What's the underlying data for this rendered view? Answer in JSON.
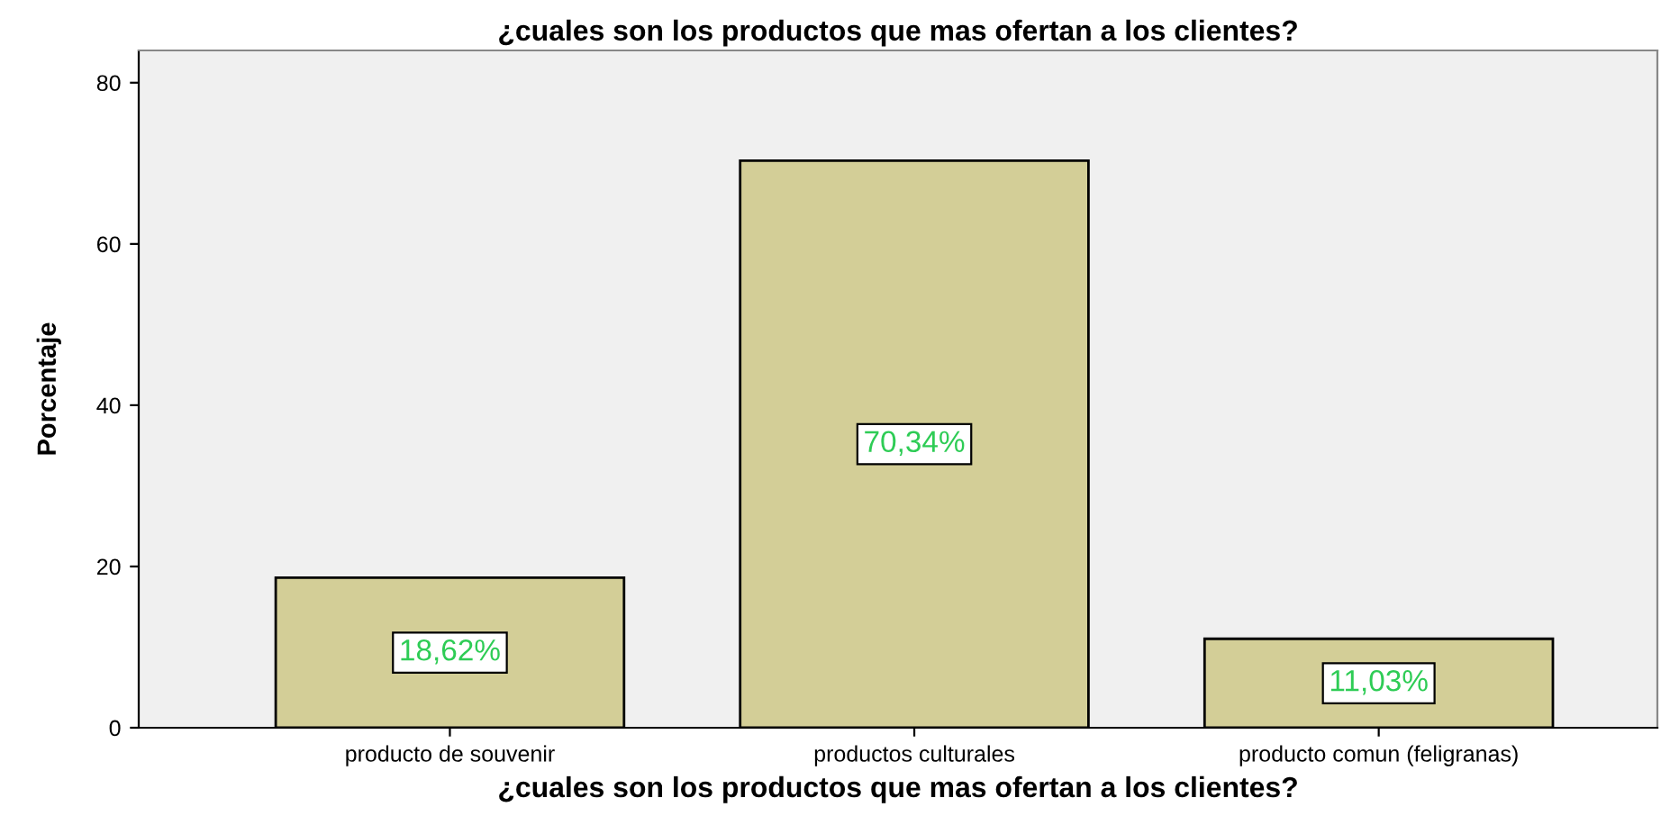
{
  "chart_data": {
    "type": "bar",
    "title": "¿cuales son los productos que mas ofertan a los clientes?",
    "xlabel": "¿cuales son los productos que mas ofertan a los clientes?",
    "ylabel": "Porcentaje",
    "categories": [
      "producto de souvenir",
      "productos culturales",
      "producto comun (feligranas)"
    ],
    "values": [
      18.62,
      70.34,
      11.03
    ],
    "value_labels": [
      "18,62%",
      "70,34%",
      "11,03%"
    ],
    "color": "#d3ce97",
    "ylim": [
      0,
      84
    ],
    "yticks": [
      0,
      20,
      40,
      60,
      80
    ],
    "grid": false
  }
}
